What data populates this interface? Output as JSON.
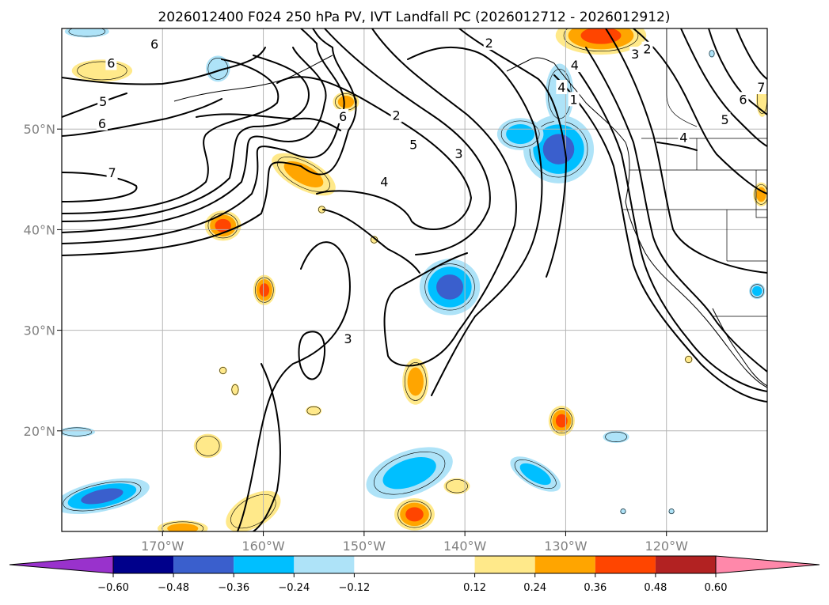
{
  "figure": {
    "title": "2026012400 F024 250 hPa PV, IVT Landfall PC (2026012712 - 2026012912)"
  },
  "map": {
    "extent": {
      "lon_min": -180,
      "lon_max": -110,
      "lat_min": 10,
      "lat_max": 60
    },
    "lat_ticks": [
      {
        "value": 20,
        "label": "20°N"
      },
      {
        "value": 30,
        "label": "30°N"
      },
      {
        "value": 40,
        "label": "40°N"
      },
      {
        "value": 50,
        "label": "50°N"
      }
    ],
    "lon_ticks": [
      {
        "value": -170,
        "label": "170°W"
      },
      {
        "value": -160,
        "label": "160°W"
      },
      {
        "value": -150,
        "label": "150°W"
      },
      {
        "value": -140,
        "label": "140°W"
      },
      {
        "value": -130,
        "label": "130°W"
      },
      {
        "value": -120,
        "label": "120°W"
      }
    ],
    "contour_labels": [
      {
        "text": "6",
        "lon": -170.8,
        "lat": 58.4
      },
      {
        "text": "6",
        "lon": -175.1,
        "lat": 56.5
      },
      {
        "text": "5",
        "lon": -175.9,
        "lat": 52.7
      },
      {
        "text": "6",
        "lon": -176.0,
        "lat": 50.5
      },
      {
        "text": "7",
        "lon": -175.0,
        "lat": 45.6
      },
      {
        "text": "6",
        "lon": -152.1,
        "lat": 51.2
      },
      {
        "text": "2",
        "lon": -137.6,
        "lat": 58.5
      },
      {
        "text": "2",
        "lon": -146.8,
        "lat": 51.3
      },
      {
        "text": "5",
        "lon": -145.1,
        "lat": 48.4
      },
      {
        "text": "3",
        "lon": -140.6,
        "lat": 47.5
      },
      {
        "text": "4",
        "lon": -148.0,
        "lat": 44.7
      },
      {
        "text": "3",
        "lon": -151.6,
        "lat": 29.1
      },
      {
        "text": "4",
        "lon": -129.1,
        "lat": 56.3
      },
      {
        "text": "4",
        "lon": -130.4,
        "lat": 54.1
      },
      {
        "text": "1",
        "lon": -129.2,
        "lat": 52.9
      },
      {
        "text": "2",
        "lon": -121.9,
        "lat": 57.9
      },
      {
        "text": "3",
        "lon": -123.1,
        "lat": 57.4
      },
      {
        "text": "5",
        "lon": -114.2,
        "lat": 50.9
      },
      {
        "text": "6",
        "lon": -112.4,
        "lat": 52.9
      },
      {
        "text": "7",
        "lon": -110.6,
        "lat": 54.1
      },
      {
        "text": "4",
        "lon": -118.3,
        "lat": 49.1
      }
    ],
    "shading": [
      {
        "level": 0.24,
        "lon": -176.0,
        "lat": 55.8,
        "rx": 3.0,
        "ry": 1.1
      },
      {
        "level": 0.3,
        "lon": -151.8,
        "lat": 52.7,
        "rx": 1.3,
        "ry": 1.0
      },
      {
        "level": 0.36,
        "lon": -156.0,
        "lat": 45.5,
        "rx": 3.5,
        "ry": 1.5,
        "rot": 28
      },
      {
        "level": 0.48,
        "lon": -164.0,
        "lat": 40.4,
        "rx": 1.8,
        "ry": 1.5
      },
      {
        "level": 0.48,
        "lon": -159.9,
        "lat": 34.0,
        "rx": 1.1,
        "ry": 1.5
      },
      {
        "level": 0.36,
        "lon": -144.9,
        "lat": 24.9,
        "rx": 1.3,
        "ry": 2.3
      },
      {
        "level": 0.42,
        "lon": -130.4,
        "lat": 21.0,
        "rx": 1.3,
        "ry": 1.5
      },
      {
        "level": 0.28,
        "lon": -155.0,
        "lat": 22.0,
        "rx": 0.8,
        "ry": 0.5
      },
      {
        "level": 0.28,
        "lon": -165.5,
        "lat": 18.5,
        "rx": 1.4,
        "ry": 1.2
      },
      {
        "level": 0.24,
        "lon": -140.8,
        "lat": 14.5,
        "rx": 1.3,
        "ry": 0.8
      },
      {
        "level": 0.24,
        "lon": -161.0,
        "lat": 12.0,
        "rx": 3.0,
        "ry": 1.6,
        "rot": -30
      },
      {
        "level": 0.42,
        "lon": -145.0,
        "lat": 11.7,
        "rx": 2.0,
        "ry": 1.6
      },
      {
        "level": 0.3,
        "lon": -168.0,
        "lat": 10.3,
        "rx": 2.5,
        "ry": 0.8
      },
      {
        "level": 0.42,
        "lon": -126.5,
        "lat": 59.3,
        "rx": 4.5,
        "ry": 1.9
      },
      {
        "level": 0.3,
        "lon": -110.6,
        "lat": 43.5,
        "rx": 0.8,
        "ry": 1.2
      },
      {
        "level": 0.28,
        "lon": -110.5,
        "lat": 53.0,
        "rx": 0.6,
        "ry": 1.8
      },
      {
        "level": 0.18,
        "lon": -164.0,
        "lat": 26.0,
        "rx": 0.4,
        "ry": 0.4
      },
      {
        "level": 0.18,
        "lon": -162.8,
        "lat": 24.1,
        "rx": 0.4,
        "ry": 0.6
      },
      {
        "level": 0.18,
        "lon": -154.2,
        "lat": 42.0,
        "rx": 0.4,
        "ry": 0.4
      },
      {
        "level": 0.18,
        "lon": -149.0,
        "lat": 39.0,
        "rx": 0.4,
        "ry": 0.4
      },
      {
        "level": 0.18,
        "lon": -117.8,
        "lat": 27.1,
        "rx": 0.4,
        "ry": 0.4
      },
      {
        "level": -0.28,
        "lon": -177.5,
        "lat": 59.7,
        "rx": 2.2,
        "ry": 0.6
      },
      {
        "level": -0.24,
        "lon": -164.5,
        "lat": 56.0,
        "rx": 1.2,
        "ry": 1.3
      },
      {
        "level": -0.42,
        "lon": -130.7,
        "lat": 48.0,
        "rx": 3.5,
        "ry": 3.4
      },
      {
        "level": -0.3,
        "lon": -134.5,
        "lat": 49.5,
        "rx": 2.3,
        "ry": 1.6
      },
      {
        "level": -0.24,
        "lon": -130.6,
        "lat": 53.5,
        "rx": 1.4,
        "ry": 3.0
      },
      {
        "level": -0.48,
        "lon": -141.5,
        "lat": 34.3,
        "rx": 3.0,
        "ry": 2.8
      },
      {
        "level": -0.3,
        "lon": -145.5,
        "lat": 15.8,
        "rx": 4.5,
        "ry": 2.2,
        "rot": -20
      },
      {
        "level": -0.3,
        "lon": -133.0,
        "lat": 15.7,
        "rx": 2.8,
        "ry": 1.2,
        "rot": 30
      },
      {
        "level": -0.42,
        "lon": -176.0,
        "lat": 13.5,
        "rx": 4.8,
        "ry": 1.5,
        "rot": -12
      },
      {
        "level": -0.24,
        "lon": -178.5,
        "lat": 19.9,
        "rx": 1.8,
        "ry": 0.5
      },
      {
        "level": -0.24,
        "lon": -125.0,
        "lat": 19.4,
        "rx": 1.3,
        "ry": 0.6
      },
      {
        "level": -0.3,
        "lon": -111.0,
        "lat": 33.9,
        "rx": 0.8,
        "ry": 0.8
      },
      {
        "level": -0.18,
        "lon": -124.3,
        "lat": 12.0,
        "rx": 0.3,
        "ry": 0.3
      },
      {
        "level": -0.18,
        "lon": -119.5,
        "lat": 12.0,
        "rx": 0.3,
        "ry": 0.3
      },
      {
        "level": -0.18,
        "lon": -115.5,
        "lat": 57.5,
        "rx": 0.3,
        "ry": 0.4
      }
    ]
  },
  "colorbar": {
    "levels": [
      -0.72,
      -0.6,
      -0.48,
      -0.36,
      -0.24,
      -0.12,
      0.12,
      0.24,
      0.36,
      0.48,
      0.6,
      0.72
    ],
    "colors": [
      "#9932CC",
      "#00008B",
      "#3A5FCD",
      "#00BFFF",
      "#AEE3F8",
      "#FFFFFF",
      "#FFE98A",
      "#FFA500",
      "#FF4500",
      "#B22222",
      "#FF88AA"
    ],
    "ticks": [
      {
        "value": -0.6,
        "label": "−0.60"
      },
      {
        "value": -0.48,
        "label": "−0.48"
      },
      {
        "value": -0.36,
        "label": "−0.36"
      },
      {
        "value": -0.24,
        "label": "−0.24"
      },
      {
        "value": -0.12,
        "label": "−0.12"
      },
      {
        "value": 0.12,
        "label": "0.12"
      },
      {
        "value": 0.24,
        "label": "0.24"
      },
      {
        "value": 0.36,
        "label": "0.36"
      },
      {
        "value": 0.48,
        "label": "0.48"
      },
      {
        "value": 0.6,
        "label": "0.60"
      }
    ]
  }
}
